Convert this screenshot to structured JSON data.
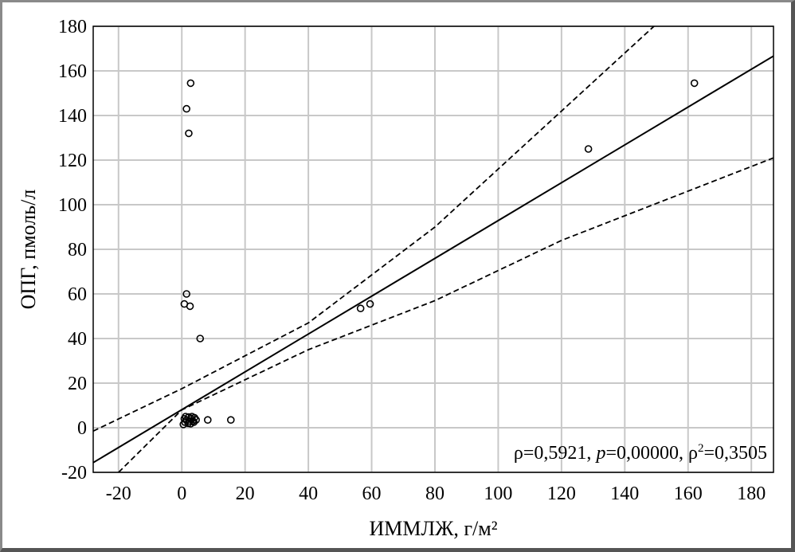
{
  "chart_data": {
    "type": "scatter",
    "xlabel": "ИММЛЖ, г/м²",
    "ylabel": "ОПГ, пмоль/л",
    "xlim": [
      -28,
      187
    ],
    "ylim": [
      -20,
      180
    ],
    "x_ticks": [
      -20,
      0,
      20,
      40,
      60,
      80,
      100,
      120,
      140,
      160,
      180
    ],
    "y_ticks": [
      -20,
      0,
      20,
      40,
      60,
      80,
      100,
      120,
      140,
      160,
      180
    ],
    "grid": true,
    "annotation": {
      "rho_label": "ρ=0,5921, ",
      "p_symbol": "p",
      "p_value": "=0,00000, ρ",
      "sq": "2",
      "r2_value": "=0,3505"
    },
    "points": [
      {
        "x": 2.8,
        "y": 154.5
      },
      {
        "x": 1.5,
        "y": 143
      },
      {
        "x": 2.2,
        "y": 132
      },
      {
        "x": 1.5,
        "y": 60
      },
      {
        "x": 0.8,
        "y": 55.5
      },
      {
        "x": 2.6,
        "y": 54.5
      },
      {
        "x": 5.8,
        "y": 40
      },
      {
        "x": 56.5,
        "y": 53.5
      },
      {
        "x": 59.5,
        "y": 55.5
      },
      {
        "x": 128.5,
        "y": 125
      },
      {
        "x": 162,
        "y": 154.5
      },
      {
        "x": 15.5,
        "y": 3.5
      },
      {
        "x": 8.2,
        "y": 3.5
      },
      {
        "x": 0.5,
        "y": 1.5
      },
      {
        "x": 1.0,
        "y": 2.5
      },
      {
        "x": 1.5,
        "y": 3.5
      },
      {
        "x": 2.0,
        "y": 2.0
      },
      {
        "x": 2.5,
        "y": 3.0
      },
      {
        "x": 3.0,
        "y": 4.0
      },
      {
        "x": 3.5,
        "y": 3.0
      },
      {
        "x": 4.0,
        "y": 4.5
      },
      {
        "x": 4.5,
        "y": 3.5
      },
      {
        "x": 1.2,
        "y": 5.0
      },
      {
        "x": 2.8,
        "y": 1.8
      },
      {
        "x": 3.8,
        "y": 2.5
      },
      {
        "x": 0.8,
        "y": 4.0
      },
      {
        "x": 2.2,
        "y": 4.8
      },
      {
        "x": 3.2,
        "y": 5.0
      }
    ],
    "regression": {
      "slope": 0.848,
      "intercept": 8.1
    },
    "ci_upper": [
      [
        -28,
        -1.5
      ],
      [
        0,
        17.5
      ],
      [
        40,
        47
      ],
      [
        80,
        90
      ],
      [
        120,
        142
      ],
      [
        150,
        181
      ]
    ],
    "ci_lower": [
      [
        -20,
        -20
      ],
      [
        0,
        8
      ],
      [
        40,
        35
      ],
      [
        80,
        57
      ],
      [
        120,
        84
      ],
      [
        187,
        121
      ]
    ]
  }
}
